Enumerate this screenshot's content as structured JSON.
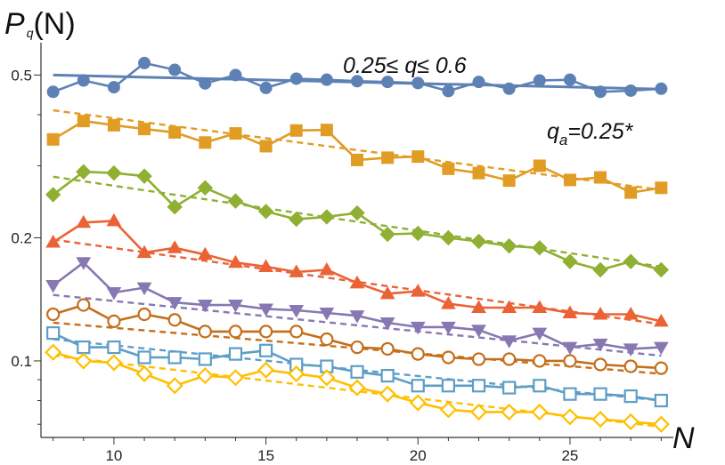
{
  "chart_data": {
    "type": "line",
    "ylabel": "P_q(N)",
    "ylabel_main": "P",
    "ylabel_sub": "q",
    "ylabel_arg": "(N)",
    "xlabel": "N",
    "xlim": [
      7.6,
      28.4
    ],
    "ylim": [
      0.065,
      0.6
    ],
    "yscale": "log",
    "xticks": [
      10,
      15,
      20,
      25
    ],
    "yticks": [
      0.1,
      0.2,
      0.5
    ],
    "xtick_labels": [
      "10",
      "15",
      "20",
      "25"
    ],
    "ytick_labels": [
      "0.1",
      "0.2",
      "0.5"
    ],
    "annotations": [
      {
        "id": "q-range",
        "text": "0.25≤ q≤ 0.6"
      },
      {
        "id": "qa",
        "text": "q",
        "sub": "a",
        "suffix": "=0.25*"
      }
    ],
    "x": [
      8,
      9,
      10,
      11,
      12,
      13,
      14,
      15,
      16,
      17,
      18,
      19,
      20,
      21,
      22,
      23,
      24,
      25,
      26,
      27,
      28
    ],
    "series": [
      {
        "id": "s1",
        "color": "#5E81B5",
        "marker": "circle",
        "values": [
          0.455,
          0.485,
          0.467,
          0.535,
          0.515,
          0.477,
          0.5,
          0.465,
          0.49,
          0.487,
          0.483,
          0.481,
          0.478,
          0.457,
          0.481,
          0.463,
          0.485,
          0.487,
          0.455,
          0.458,
          0.463
        ],
        "fit": [
          0.5,
          0.462
        ]
      },
      {
        "id": "s2",
        "color": "#E19C24",
        "marker": "square",
        "values": [
          0.348,
          0.386,
          0.377,
          0.369,
          0.362,
          0.342,
          0.36,
          0.335,
          0.366,
          0.367,
          0.31,
          0.314,
          0.316,
          0.295,
          0.288,
          0.276,
          0.3,
          0.277,
          0.281,
          0.258,
          0.265
        ],
        "fit": [
          0.41,
          0.262
        ]
      },
      {
        "id": "s3",
        "color": "#8FB032",
        "marker": "diamond",
        "values": [
          0.255,
          0.29,
          0.288,
          0.283,
          0.238,
          0.265,
          0.246,
          0.232,
          0.222,
          0.225,
          0.23,
          0.204,
          0.205,
          0.2,
          0.196,
          0.191,
          0.189,
          0.175,
          0.167,
          0.175,
          0.167
        ],
        "fit": [
          0.282,
          0.17
        ]
      },
      {
        "id": "s4",
        "color": "#EB6235",
        "marker": "triangle-up",
        "values": [
          0.195,
          0.218,
          0.22,
          0.184,
          0.189,
          0.182,
          0.174,
          0.17,
          0.165,
          0.167,
          0.155,
          0.146,
          0.148,
          0.138,
          0.135,
          0.135,
          0.135,
          0.131,
          0.13,
          0.13,
          0.125
        ],
        "fit": [
          0.198,
          0.123
        ]
      },
      {
        "id": "s5",
        "color": "#8778B3",
        "marker": "triangle-down",
        "values": [
          0.153,
          0.174,
          0.147,
          0.151,
          0.139,
          0.137,
          0.137,
          0.134,
          0.133,
          0.131,
          0.129,
          0.124,
          0.121,
          0.121,
          0.119,
          0.112,
          0.117,
          0.108,
          0.11,
          0.107,
          0.108
        ],
        "fit": [
          0.145,
          0.103
        ]
      },
      {
        "id": "s6",
        "color": "#C56E1A",
        "marker": "circle-open",
        "values": [
          0.13,
          0.137,
          0.125,
          0.13,
          0.126,
          0.118,
          0.118,
          0.118,
          0.118,
          0.113,
          0.108,
          0.107,
          0.104,
          0.102,
          0.101,
          0.101,
          0.1,
          0.1,
          0.098,
          0.097,
          0.096
        ],
        "fit": [
          0.124,
          0.093
        ]
      },
      {
        "id": "s7",
        "color": "#5D9EC7",
        "marker": "square-open",
        "values": [
          0.117,
          0.108,
          0.108,
          0.102,
          0.102,
          0.101,
          0.104,
          0.106,
          0.098,
          0.097,
          0.094,
          0.092,
          0.087,
          0.087,
          0.087,
          0.086,
          0.087,
          0.083,
          0.083,
          0.082,
          0.08
        ],
        "fit": [
          0.113,
          0.08
        ]
      },
      {
        "id": "s8",
        "color": "#FFBF00",
        "marker": "diamond-open",
        "values": [
          0.105,
          0.1,
          0.099,
          0.093,
          0.087,
          0.092,
          0.091,
          0.095,
          0.093,
          0.091,
          0.086,
          0.083,
          0.079,
          0.076,
          0.075,
          0.075,
          0.075,
          0.073,
          0.072,
          0.071,
          0.07
        ],
        "fit": [
          0.103,
          0.069
        ]
      }
    ]
  }
}
